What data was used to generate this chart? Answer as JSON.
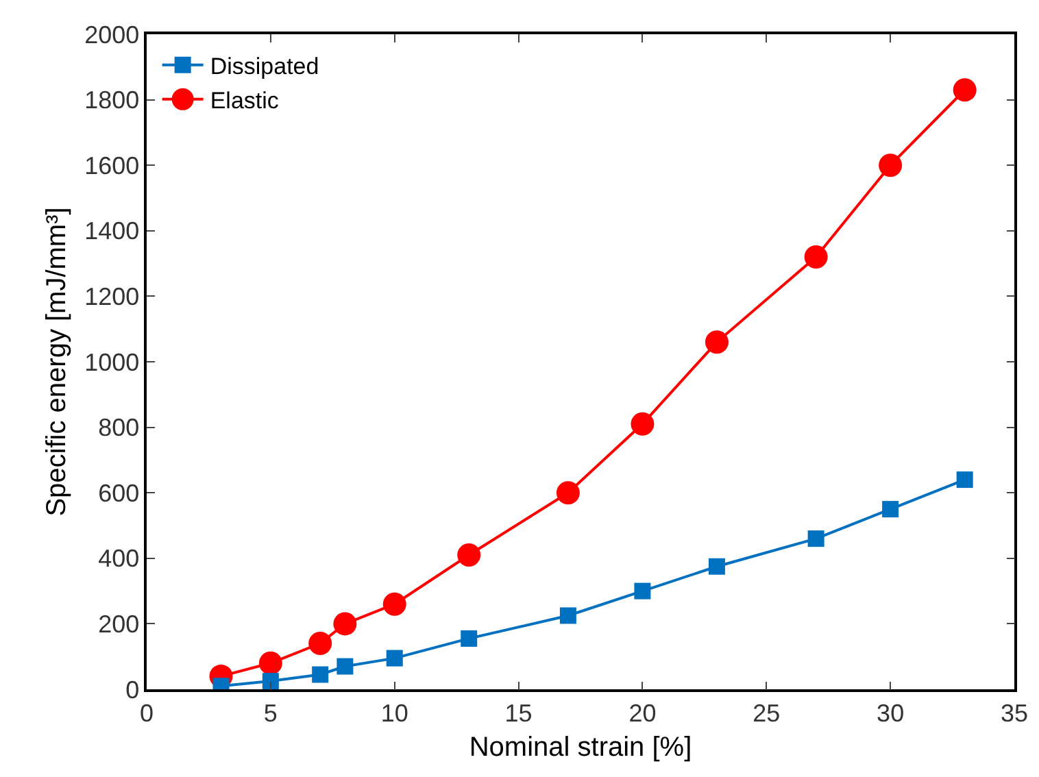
{
  "chart_data": {
    "type": "line",
    "xlabel": "Nominal strain [%]",
    "ylabel": "Specific energy [mJ/mm³]",
    "x": [
      3,
      5,
      7,
      8,
      10,
      13,
      17,
      20,
      23,
      27,
      30,
      33
    ],
    "series": [
      {
        "name": "Dissipated",
        "color": "#0070c0",
        "marker": "square",
        "values": [
          10,
          25,
          45,
          70,
          95,
          155,
          225,
          300,
          375,
          460,
          550,
          640
        ]
      },
      {
        "name": "Elastic",
        "color": "#ff0000",
        "marker": "circle",
        "values": [
          40,
          80,
          140,
          200,
          260,
          410,
          600,
          810,
          1060,
          1320,
          1600,
          1830
        ]
      }
    ],
    "xlim": [
      0,
      35
    ],
    "xticks": [
      0,
      5,
      10,
      15,
      20,
      25,
      30,
      35
    ],
    "ylim": [
      0,
      2000
    ],
    "yticks": [
      0,
      200,
      400,
      600,
      800,
      1000,
      1200,
      1400,
      1600,
      1800,
      2000
    ],
    "grid": false,
    "legend": "top left",
    "line_style": "solid"
  }
}
